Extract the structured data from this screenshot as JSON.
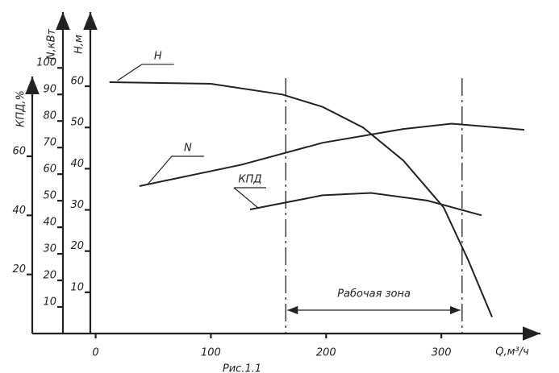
{
  "chart_data": {
    "type": "line",
    "caption": "Рис.1.1",
    "x_label": "Q,м³/ч",
    "xlim": [
      -55,
      386
    ],
    "xticks": [
      0,
      100,
      200,
      300
    ],
    "axes": [
      {
        "label": "КПД,%",
        "lim": [
          0,
          87
        ],
        "ticks": [
          20,
          40,
          60
        ]
      },
      {
        "label": "N,кВт",
        "lim": [
          0,
          121
        ],
        "ticks": [
          10,
          20,
          30,
          40,
          50,
          60,
          70,
          80,
          90,
          100
        ]
      },
      {
        "label": "H,м",
        "lim": [
          0,
          78
        ],
        "ticks": [
          10,
          20,
          30,
          40,
          50,
          60
        ]
      }
    ],
    "series": [
      {
        "name": "H",
        "axis": 2,
        "color": "#222",
        "x": [
          12,
          100,
          162,
          197,
          232,
          267,
          302,
          323,
          344
        ],
        "values": [
          61,
          60.6,
          58,
          55,
          50,
          42,
          30.6,
          18,
          4
        ]
      },
      {
        "name": "N",
        "axis": 1,
        "color": "#222",
        "x": [
          38,
          127,
          197,
          267,
          309,
          372
        ],
        "values": [
          55.5,
          63.6,
          71.8,
          77,
          79,
          76.7
        ]
      },
      {
        "name": "КПД",
        "axis": 0,
        "color": "#222",
        "x": [
          134,
          197,
          239,
          288,
          335
        ],
        "values": [
          42,
          46.8,
          47.6,
          45,
          40
        ]
      }
    ],
    "work_zone": {
      "label": "Рабочая зона",
      "range": [
        165,
        318
      ]
    }
  }
}
